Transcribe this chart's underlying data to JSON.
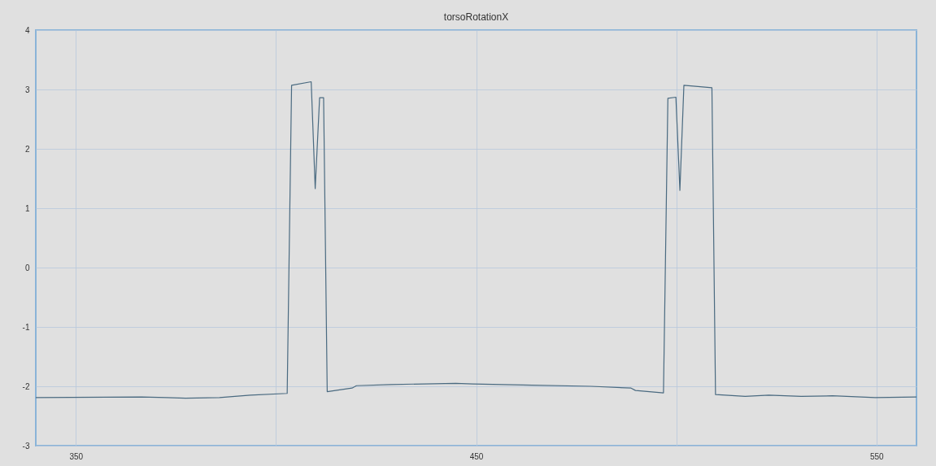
{
  "chart_data": {
    "type": "line",
    "title": "torsoRotationX",
    "x": [
      340,
      366.4,
      372.7,
      377.4,
      385.9,
      393.6,
      402.8,
      403.9,
      408.8,
      409.8,
      410.9,
      411.9,
      412.8,
      419,
      420.1,
      428.6,
      444.9,
      449.2,
      464,
      478.7,
      488.7,
      489.8,
      496.8,
      497.9,
      499.9,
      500.9,
      501.9,
      508.9,
      509.8,
      517.2,
      523.1,
      531.2,
      539,
      549.7,
      560
    ],
    "series": [
      {
        "color": "#4a6a80",
        "values": [
          -2.19,
          -2.18,
          -2.19,
          -2.2,
          -2.19,
          -2.15,
          -2.12,
          3.07,
          3.13,
          1.33,
          2.86,
          2.86,
          -2.09,
          -2.03,
          -1.99,
          -1.97,
          -1.95,
          -1.96,
          -1.98,
          -2.0,
          -2.03,
          -2.07,
          -2.11,
          2.85,
          2.87,
          1.3,
          3.07,
          3.03,
          -2.14,
          -2.17,
          -2.15,
          -2.17,
          -2.16,
          -2.19,
          -2.18
        ]
      }
    ],
    "xlim": [
      340,
      560
    ],
    "xticks": [
      350,
      {
        "value": 400,
        "label": null
      },
      450,
      {
        "value": 500,
        "label": null
      },
      550
    ],
    "ylim": [
      -3,
      4
    ],
    "yticks": [
      -3,
      -2,
      -1,
      0,
      1,
      2,
      3,
      4
    ],
    "grid": true,
    "marker": "none",
    "line_style": "solid"
  }
}
